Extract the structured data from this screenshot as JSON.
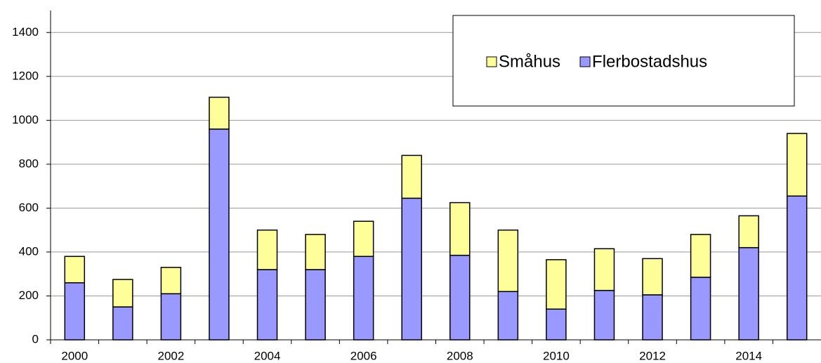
{
  "chart_data": {
    "type": "stacked_bar",
    "categories": [
      "2000",
      null,
      "2002",
      null,
      "2004",
      null,
      "2006",
      null,
      "2008",
      null,
      "2010",
      null,
      "2012",
      null,
      "2014",
      null
    ],
    "series": [
      {
        "name": "Småhus",
        "color": "#ffff99",
        "values": [
          120,
          125,
          120,
          145,
          180,
          160,
          160,
          195,
          240,
          280,
          225,
          190,
          165,
          195,
          145,
          285
        ]
      },
      {
        "name": "Flerbostadshus",
        "color": "#9999ff",
        "values": [
          260,
          150,
          210,
          960,
          320,
          320,
          380,
          645,
          385,
          220,
          140,
          225,
          205,
          285,
          420,
          655
        ]
      }
    ],
    "ylim": [
      0,
      1500
    ],
    "yticks": [
      0,
      200,
      400,
      600,
      800,
      1000,
      1200,
      1400
    ],
    "grid": true,
    "legend": "top-right"
  }
}
